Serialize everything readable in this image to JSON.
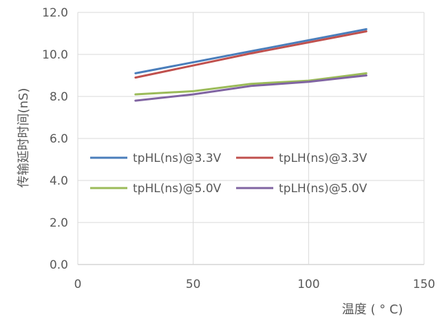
{
  "chart_data": {
    "type": "line",
    "xlabel": "温度 ( ° C)",
    "ylabel": "传输延时时间(nS)",
    "xlim": [
      0,
      150
    ],
    "ylim": [
      0,
      12
    ],
    "x_ticks": [
      "0",
      "50",
      "100",
      "150"
    ],
    "y_ticks": [
      "0.0",
      "2.0",
      "4.0",
      "6.0",
      "8.0",
      "10.0",
      "12.0"
    ],
    "grid": true,
    "legend_position": "center-left",
    "series": [
      {
        "name": "tpHL(ns)@3.3V",
        "color": "#4a7ebb",
        "x": [
          25,
          75,
          125
        ],
        "y": [
          9.1,
          10.15,
          11.2
        ]
      },
      {
        "name": "tpLH(ns)@3.3V",
        "color": "#c0504d",
        "x": [
          25,
          75,
          125
        ],
        "y": [
          8.9,
          10.05,
          11.1
        ]
      },
      {
        "name": "tpHL(ns)@5.0V",
        "color": "#9bbb59",
        "x": [
          25,
          50,
          75,
          100,
          125
        ],
        "y": [
          8.1,
          8.25,
          8.6,
          8.75,
          9.1
        ]
      },
      {
        "name": "tpLH(ns)@5.0V",
        "color": "#8064a2",
        "x": [
          25,
          50,
          75,
          100,
          125
        ],
        "y": [
          7.8,
          8.1,
          8.5,
          8.7,
          9.0
        ]
      }
    ]
  }
}
